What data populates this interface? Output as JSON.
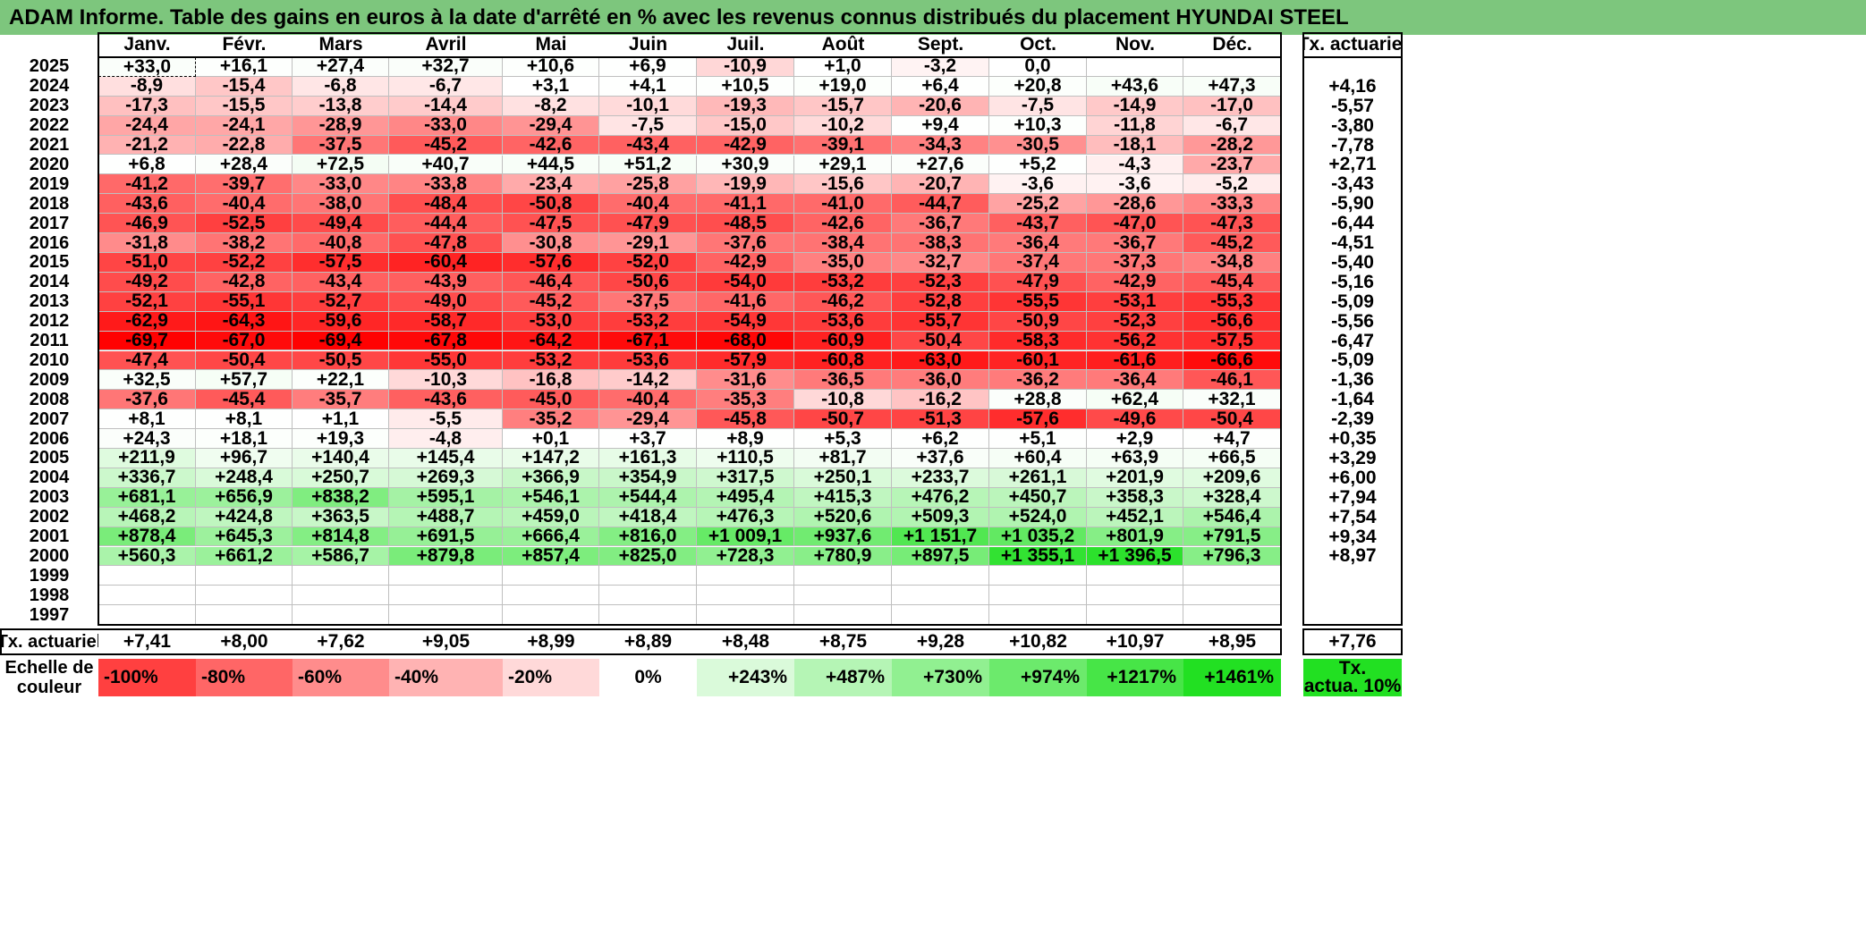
{
  "title": "ADAM Informe. Table des gains en euros à la date d'arrêté en % avec les revenus connus distribués du placement HYUNDAI STEEL",
  "months": [
    "Janv.",
    "Févr.",
    "Mars",
    "Avril",
    "Mai",
    "Juin",
    "Juil.",
    "Août",
    "Sept.",
    "Oct.",
    "Nov.",
    "Déc."
  ],
  "tx_header": "Tx. actuariel",
  "rows": [
    {
      "year": "2025",
      "values": [
        "+33,0",
        "+16,1",
        "+27,4",
        "+32,7",
        "+10,6",
        "+6,9",
        "-10,9",
        "+1,0",
        "-3,2",
        "0,0",
        "",
        ""
      ],
      "tx": ""
    },
    {
      "year": "2024",
      "values": [
        "-8,9",
        "-15,4",
        "-6,8",
        "-6,7",
        "+3,1",
        "+4,1",
        "+10,5",
        "+19,0",
        "+6,4",
        "+20,8",
        "+43,6",
        "+47,3"
      ],
      "tx": "+4,16"
    },
    {
      "year": "2023",
      "values": [
        "-17,3",
        "-15,5",
        "-13,8",
        "-14,4",
        "-8,2",
        "-10,1",
        "-19,3",
        "-15,7",
        "-20,6",
        "-7,5",
        "-14,9",
        "-17,0"
      ],
      "tx": "-5,57"
    },
    {
      "year": "2022",
      "values": [
        "-24,4",
        "-24,1",
        "-28,9",
        "-33,0",
        "-29,4",
        "-7,5",
        "-15,0",
        "-10,2",
        "+9,4",
        "+10,3",
        "-11,8",
        "-6,7"
      ],
      "tx": "-3,80"
    },
    {
      "year": "2021",
      "values": [
        "-21,2",
        "-22,8",
        "-37,5",
        "-45,2",
        "-42,6",
        "-43,4",
        "-42,9",
        "-39,1",
        "-34,3",
        "-30,5",
        "-18,1",
        "-28,2"
      ],
      "tx": "-7,78"
    },
    {
      "year": "2020",
      "values": [
        "+6,8",
        "+28,4",
        "+72,5",
        "+40,7",
        "+44,5",
        "+51,2",
        "+30,9",
        "+29,1",
        "+27,6",
        "+5,2",
        "-4,3",
        "-23,7"
      ],
      "tx": "+2,71"
    },
    {
      "year": "2019",
      "values": [
        "-41,2",
        "-39,7",
        "-33,0",
        "-33,8",
        "-23,4",
        "-25,8",
        "-19,9",
        "-15,6",
        "-20,7",
        "-3,6",
        "-3,6",
        "-5,2"
      ],
      "tx": "-3,43"
    },
    {
      "year": "2018",
      "values": [
        "-43,6",
        "-40,4",
        "-38,0",
        "-48,4",
        "-50,8",
        "-40,4",
        "-41,1",
        "-41,0",
        "-44,7",
        "-25,2",
        "-28,6",
        "-33,3"
      ],
      "tx": "-5,90"
    },
    {
      "year": "2017",
      "values": [
        "-46,9",
        "-52,5",
        "-49,4",
        "-44,4",
        "-47,5",
        "-47,9",
        "-48,5",
        "-42,6",
        "-36,7",
        "-43,7",
        "-47,0",
        "-47,3"
      ],
      "tx": "-6,44"
    },
    {
      "year": "2016",
      "values": [
        "-31,8",
        "-38,2",
        "-40,8",
        "-47,8",
        "-30,8",
        "-29,1",
        "-37,6",
        "-38,4",
        "-38,3",
        "-36,4",
        "-36,7",
        "-45,2"
      ],
      "tx": "-4,51"
    },
    {
      "year": "2015",
      "values": [
        "-51,0",
        "-52,2",
        "-57,5",
        "-60,4",
        "-57,6",
        "-52,0",
        "-42,9",
        "-35,0",
        "-32,7",
        "-37,4",
        "-37,3",
        "-34,8"
      ],
      "tx": "-5,40"
    },
    {
      "year": "2014",
      "values": [
        "-49,2",
        "-42,8",
        "-43,4",
        "-43,9",
        "-46,4",
        "-50,6",
        "-54,0",
        "-53,2",
        "-52,3",
        "-47,9",
        "-42,9",
        "-45,4"
      ],
      "tx": "-5,16"
    },
    {
      "year": "2013",
      "values": [
        "-52,1",
        "-55,1",
        "-52,7",
        "-49,0",
        "-45,2",
        "-37,5",
        "-41,6",
        "-46,2",
        "-52,8",
        "-55,5",
        "-53,1",
        "-55,3"
      ],
      "tx": "-5,09"
    },
    {
      "year": "2012",
      "values": [
        "-62,9",
        "-64,3",
        "-59,6",
        "-58,7",
        "-53,0",
        "-53,2",
        "-54,9",
        "-53,6",
        "-55,7",
        "-50,9",
        "-52,3",
        "-56,6"
      ],
      "tx": "-5,56"
    },
    {
      "year": "2011",
      "values": [
        "-69,7",
        "-67,0",
        "-69,4",
        "-67,8",
        "-64,2",
        "-67,1",
        "-68,0",
        "-60,9",
        "-50,4",
        "-58,3",
        "-56,2",
        "-57,5"
      ],
      "tx": "-6,47"
    },
    {
      "year": "2010",
      "values": [
        "-47,4",
        "-50,4",
        "-50,5",
        "-55,0",
        "-53,2",
        "-53,6",
        "-57,9",
        "-60,8",
        "-63,0",
        "-60,1",
        "-61,6",
        "-66,6"
      ],
      "tx": "-5,09"
    },
    {
      "year": "2009",
      "values": [
        "+32,5",
        "+57,7",
        "+22,1",
        "-10,3",
        "-16,8",
        "-14,2",
        "-31,6",
        "-36,5",
        "-36,0",
        "-36,2",
        "-36,4",
        "-46,1"
      ],
      "tx": "-1,36"
    },
    {
      "year": "2008",
      "values": [
        "-37,6",
        "-45,4",
        "-35,7",
        "-43,6",
        "-45,0",
        "-40,4",
        "-35,3",
        "-10,8",
        "-16,2",
        "+28,8",
        "+62,4",
        "+32,1"
      ],
      "tx": "-1,64"
    },
    {
      "year": "2007",
      "values": [
        "+8,1",
        "+8,1",
        "+1,1",
        "-5,5",
        "-35,2",
        "-29,4",
        "-45,8",
        "-50,7",
        "-51,3",
        "-57,6",
        "-49,6",
        "-50,4"
      ],
      "tx": "-2,39"
    },
    {
      "year": "2006",
      "values": [
        "+24,3",
        "+18,1",
        "+19,3",
        "-4,8",
        "+0,1",
        "+3,7",
        "+8,9",
        "+5,3",
        "+6,2",
        "+5,1",
        "+2,9",
        "+4,7"
      ],
      "tx": "+0,35"
    },
    {
      "year": "2005",
      "values": [
        "+211,9",
        "+96,7",
        "+140,4",
        "+145,4",
        "+147,2",
        "+161,3",
        "+110,5",
        "+81,7",
        "+37,6",
        "+60,4",
        "+63,9",
        "+66,5"
      ],
      "tx": "+3,29"
    },
    {
      "year": "2004",
      "values": [
        "+336,7",
        "+248,4",
        "+250,7",
        "+269,3",
        "+366,9",
        "+354,9",
        "+317,5",
        "+250,1",
        "+233,7",
        "+261,1",
        "+201,9",
        "+209,6"
      ],
      "tx": "+6,00"
    },
    {
      "year": "2003",
      "values": [
        "+681,1",
        "+656,9",
        "+838,2",
        "+595,1",
        "+546,1",
        "+544,4",
        "+495,4",
        "+415,3",
        "+476,2",
        "+450,7",
        "+358,3",
        "+328,4"
      ],
      "tx": "+7,94"
    },
    {
      "year": "2002",
      "values": [
        "+468,2",
        "+424,8",
        "+363,5",
        "+488,7",
        "+459,0",
        "+418,4",
        "+476,3",
        "+520,6",
        "+509,3",
        "+524,0",
        "+452,1",
        "+546,4"
      ],
      "tx": "+7,54"
    },
    {
      "year": "2001",
      "values": [
        "+878,4",
        "+645,3",
        "+814,8",
        "+691,5",
        "+666,4",
        "+816,0",
        "+1 009,1",
        "+937,6",
        "+1 151,7",
        "+1 035,2",
        "+801,9",
        "+791,5"
      ],
      "tx": "+9,34"
    },
    {
      "year": "2000",
      "values": [
        "+560,3",
        "+661,2",
        "+586,7",
        "+879,8",
        "+857,4",
        "+825,0",
        "+728,3",
        "+780,9",
        "+897,5",
        "+1 355,1",
        "+1 396,5",
        "+796,3"
      ],
      "tx": "+8,97"
    },
    {
      "year": "1999",
      "values": [
        "",
        "",
        "",
        "",
        "",
        "",
        "",
        "",
        "",
        "",
        "",
        ""
      ],
      "tx": ""
    },
    {
      "year": "1998",
      "values": [
        "",
        "",
        "",
        "",
        "",
        "",
        "",
        "",
        "",
        "",
        "",
        ""
      ],
      "tx": ""
    },
    {
      "year": "1997",
      "values": [
        "",
        "",
        "",
        "",
        "",
        "",
        "",
        "",
        "",
        "",
        "",
        ""
      ],
      "tx": ""
    }
  ],
  "footer": {
    "label": "Tx. actuariel",
    "values": [
      "+7,41",
      "+8,00",
      "+7,62",
      "+9,05",
      "+8,99",
      "+8,89",
      "+8,48",
      "+8,75",
      "+9,28",
      "+10,82",
      "+10,97",
      "+8,95"
    ],
    "tx": "+7,76"
  },
  "legend": {
    "label_line1": "Echelle de",
    "label_line2": "couleur",
    "scale": [
      "-100%",
      "-80%",
      "-60%",
      "-40%",
      "-20%",
      "0%",
      "+243%",
      "+487%",
      "+730%",
      "+974%",
      "+1217%",
      "+1461%"
    ],
    "tx_line1": "Tx.",
    "tx_line2": "actua. 10%",
    "tx_color": "#22e022"
  },
  "colors": {
    "title_bg": "#7dc67d",
    "neg_max": "#ff0000",
    "pos_max": "#22e022",
    "neutral": "#ffffff"
  }
}
